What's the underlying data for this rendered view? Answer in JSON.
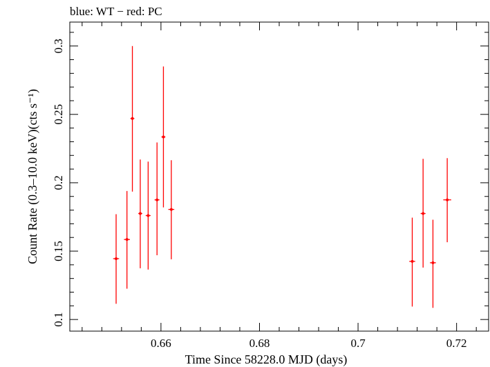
{
  "chart_data": {
    "type": "scatter",
    "title": "blue: WT − red: PC",
    "xlabel": "Time Since 58228.0 MJD (days)",
    "ylabel": "Count Rate (0.3–10.0 keV)(cts s⁻¹)",
    "xlim": [
      0.6415,
      0.7265
    ],
    "ylim": [
      0.0915,
      0.3175
    ],
    "x_ticks": [
      0.66,
      0.68,
      0.7,
      0.72
    ],
    "x_tick_labels": [
      "0.66",
      "0.68",
      "0.7",
      "0.72"
    ],
    "y_ticks": [
      0.1,
      0.15,
      0.2,
      0.25,
      0.3
    ],
    "y_tick_labels": [
      "0.1",
      "0.15",
      "0.2",
      "0.25",
      "0.3"
    ],
    "grid": false,
    "series": [
      {
        "name": "PC",
        "color": "#ff0000",
        "points": [
          {
            "x": 0.6509,
            "xerr": 0.0006,
            "y": 0.1445,
            "ylo": 0.1115,
            "yhi": 0.177
          },
          {
            "x": 0.6531,
            "xerr": 0.0006,
            "y": 0.1585,
            "ylo": 0.1225,
            "yhi": 0.194
          },
          {
            "x": 0.6542,
            "xerr": 0.0004,
            "y": 0.247,
            "ylo": 0.1935,
            "yhi": 0.3
          },
          {
            "x": 0.6558,
            "xerr": 0.0004,
            "y": 0.1775,
            "ylo": 0.1375,
            "yhi": 0.217
          },
          {
            "x": 0.6574,
            "xerr": 0.0005,
            "y": 0.176,
            "ylo": 0.1365,
            "yhi": 0.2155
          },
          {
            "x": 0.6592,
            "xerr": 0.0005,
            "y": 0.1875,
            "ylo": 0.147,
            "yhi": 0.2295
          },
          {
            "x": 0.6605,
            "xerr": 0.0004,
            "y": 0.2335,
            "ylo": 0.182,
            "yhi": 0.285
          },
          {
            "x": 0.6621,
            "xerr": 0.0006,
            "y": 0.1805,
            "ylo": 0.144,
            "yhi": 0.2165
          },
          {
            "x": 0.711,
            "xerr": 0.0006,
            "y": 0.1425,
            "ylo": 0.1095,
            "yhi": 0.1745
          },
          {
            "x": 0.7132,
            "xerr": 0.0005,
            "y": 0.1775,
            "ylo": 0.138,
            "yhi": 0.2175
          },
          {
            "x": 0.7152,
            "xerr": 0.0006,
            "y": 0.1415,
            "ylo": 0.1085,
            "yhi": 0.173
          },
          {
            "x": 0.7181,
            "xerr": 0.0008,
            "y": 0.1875,
            "ylo": 0.1565,
            "yhi": 0.218
          }
        ]
      }
    ]
  }
}
